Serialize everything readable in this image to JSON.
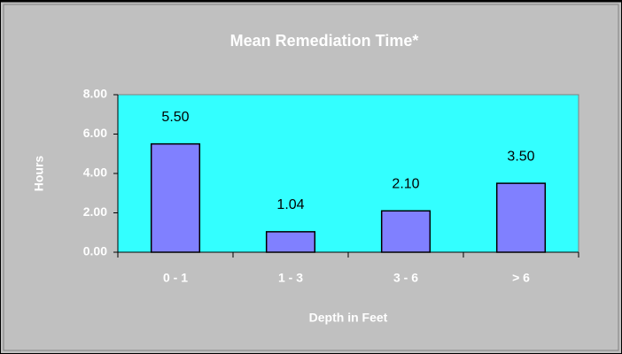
{
  "chart_data": {
    "type": "bar",
    "title": "Mean Remediation Time*",
    "x_label": "Depth in Feet",
    "y_label": "Hours",
    "categories": [
      "0 - 1",
      "1 - 3",
      "3 - 6",
      "> 6"
    ],
    "values": [
      5.5,
      1.04,
      2.1,
      3.5
    ],
    "value_labels": [
      "5.50",
      "1.04",
      "2.10",
      "3.50"
    ],
    "color": "#8080ff",
    "ylim": [
      0,
      8
    ],
    "yticks": [
      {
        "value": 0,
        "label": "0.00"
      },
      {
        "value": 2,
        "label": "2.00"
      },
      {
        "value": 4,
        "label": "4.00"
      },
      {
        "value": 6,
        "label": "6.00"
      },
      {
        "value": 8,
        "label": "8.00"
      }
    ]
  }
}
